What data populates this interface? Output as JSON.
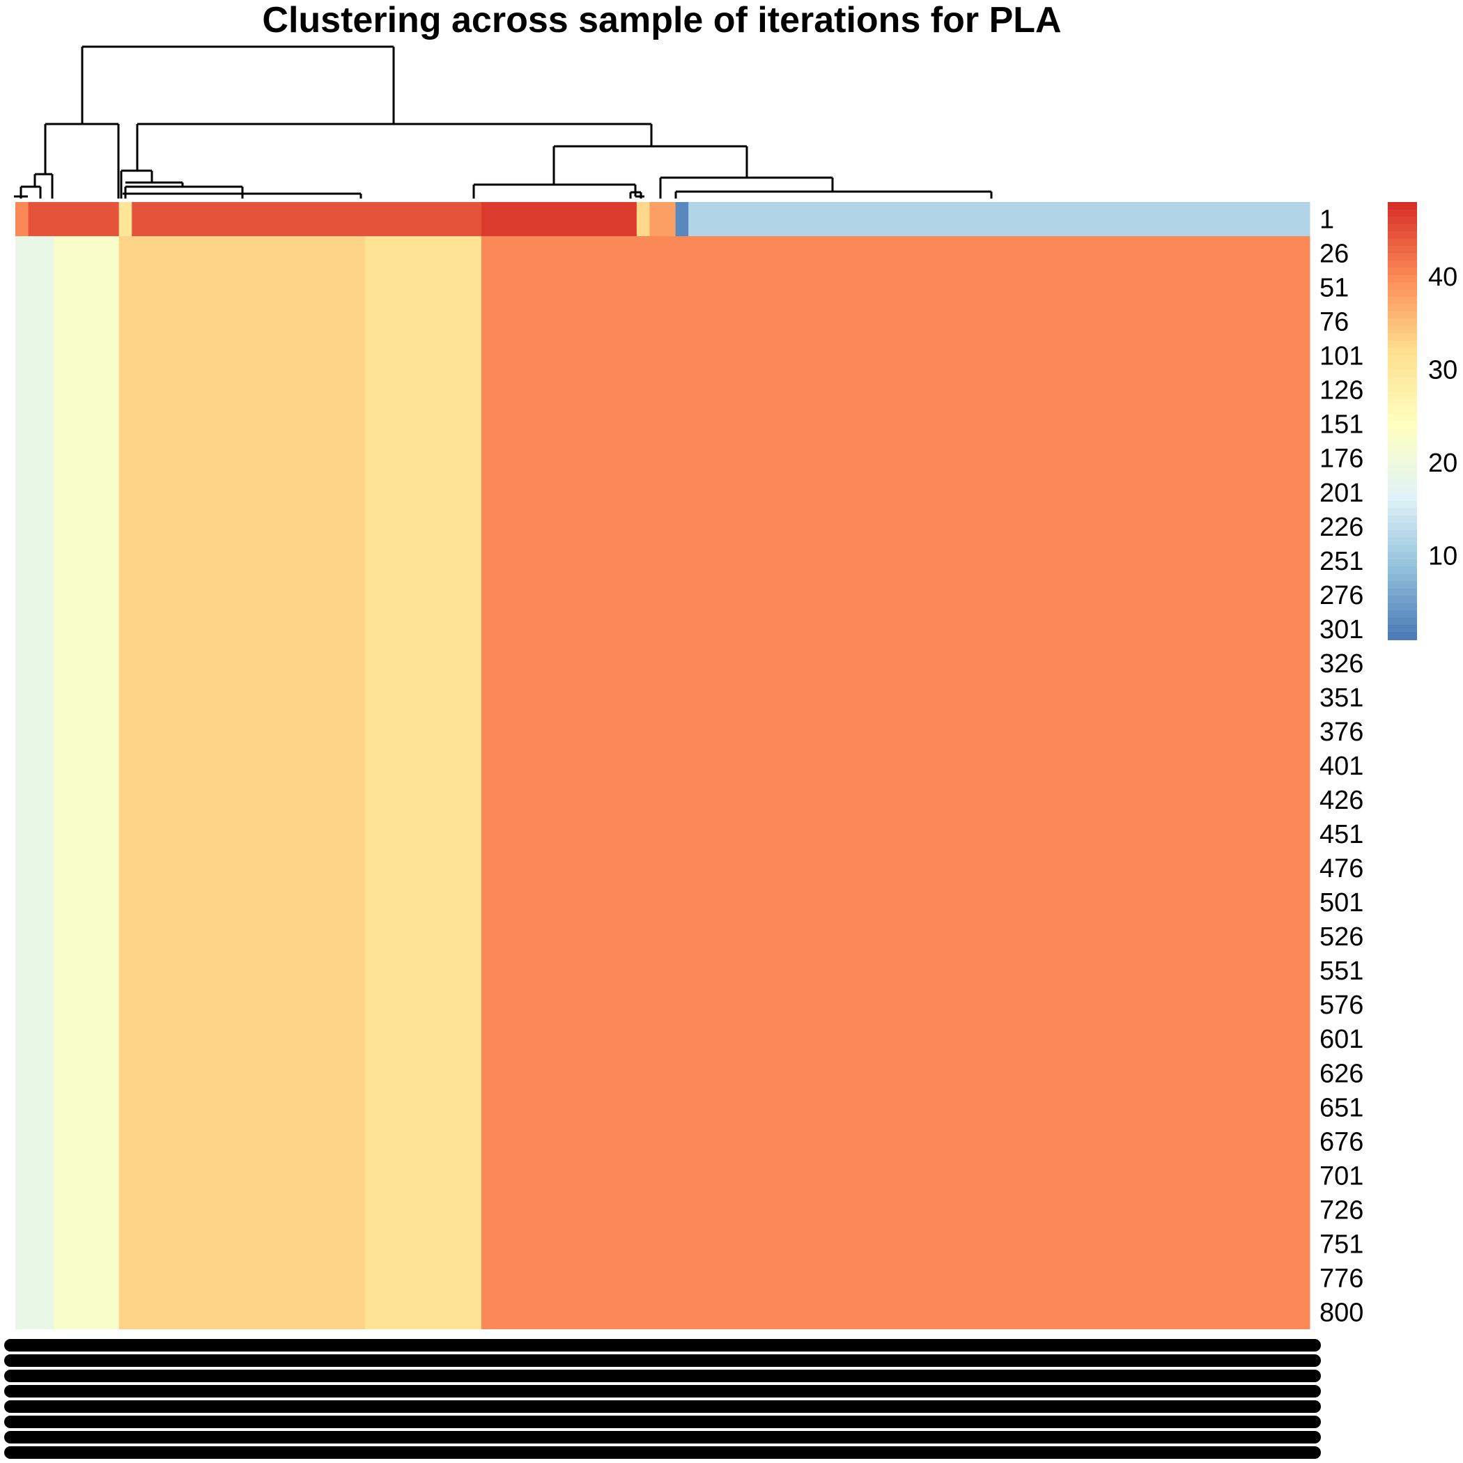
{
  "chart_data": {
    "type": "heatmap",
    "title": "Clustering across sample of iterations for PLA",
    "row_labels": [
      "1",
      "26",
      "51",
      "76",
      "101",
      "126",
      "151",
      "176",
      "201",
      "226",
      "251",
      "276",
      "301",
      "326",
      "351",
      "376",
      "401",
      "426",
      "451",
      "476",
      "501",
      "526",
      "551",
      "576",
      "601",
      "626",
      "651",
      "676",
      "701",
      "726",
      "751",
      "776",
      "800"
    ],
    "column_blocks": [
      {
        "cols": 1,
        "first_row": 40.5,
        "rest": 19
      },
      {
        "cols": 2,
        "first_row": 45,
        "rest": 19
      },
      {
        "cols": 5,
        "first_row": 45,
        "rest": 23
      },
      {
        "cols": 1,
        "first_row": 31,
        "rest": 33.5
      },
      {
        "cols": 18,
        "first_row": 45,
        "rest": 33.5
      },
      {
        "cols": 9,
        "first_row": 45,
        "rest": 31.5
      },
      {
        "cols": 12,
        "first_row": 47,
        "rest": 40.5
      },
      {
        "cols": 1,
        "first_row": 33,
        "rest": 40.5
      },
      {
        "cols": 2,
        "first_row": 38.5,
        "rest": 40.5
      },
      {
        "cols": 1,
        "first_row": 3,
        "rest": 40.5
      },
      {
        "cols": 48,
        "first_row": 12,
        "rest": 40.5
      }
    ],
    "n_columns": 100,
    "legend": {
      "min": 1,
      "max": 48,
      "ticks": [
        10,
        20,
        30,
        40
      ],
      "palette": [
        "#4575b4",
        "#91bfdb",
        "#e0f3f8",
        "#ffffbf",
        "#fee090",
        "#fc8d59",
        "#d73027"
      ]
    },
    "column_labels": "black bars (overlapping, illegible)",
    "dendrogram": "column clustering tree (top)"
  }
}
